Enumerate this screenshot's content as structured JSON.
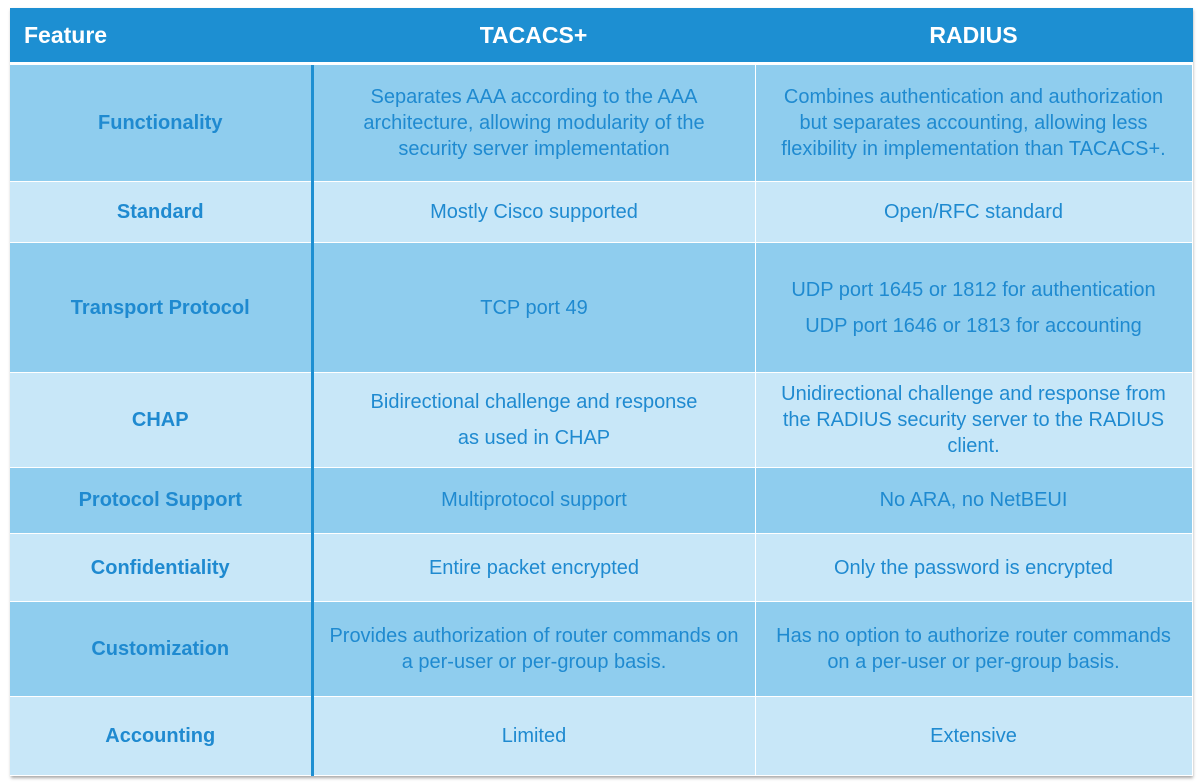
{
  "headers": {
    "feature": "Feature",
    "tacacs": "TACACS+",
    "radius": "RADIUS"
  },
  "rows": [
    {
      "feature": "Functionality",
      "tacacs": "Separates AAA according to the AAA architecture, allowing modularity of the security server implementation",
      "radius": "Combines authentication and authorization but separates accounting, allowing less flexibility in implementation than TACACS+."
    },
    {
      "feature": "Standard",
      "tacacs": "Mostly Cisco supported",
      "radius": "Open/RFC standard"
    },
    {
      "feature": "Transport Protocol",
      "tacacs": "TCP port 49",
      "radius_line1": "UDP port 1645 or 1812 for authentication",
      "radius_line2": "UDP port 1646 or 1813 for accounting"
    },
    {
      "feature": "CHAP",
      "tacacs_line1": "Bidirectional challenge and response",
      "tacacs_line2": "as used in CHAP",
      "radius": "Unidirectional challenge and response from the RADIUS security server to the RADIUS client."
    },
    {
      "feature": "Protocol Support",
      "tacacs": "Multiprotocol support",
      "radius": "No ARA, no NetBEUI"
    },
    {
      "feature": "Confidentiality",
      "tacacs": "Entire packet encrypted",
      "radius": "Only the password is encrypted"
    },
    {
      "feature": "Customization",
      "tacacs": "Provides authorization of router commands on a per-user or per-group basis.",
      "radius": "Has no option to authorize router commands on a per-user or per-group basis."
    },
    {
      "feature": "Accounting",
      "tacacs": "Limited",
      "radius": "Extensive"
    }
  ],
  "colors": {
    "header_bg": "#1d8fd2",
    "row_dark": "#8fcdee",
    "row_light": "#c8e7f8",
    "text": "#1f8ad0"
  }
}
